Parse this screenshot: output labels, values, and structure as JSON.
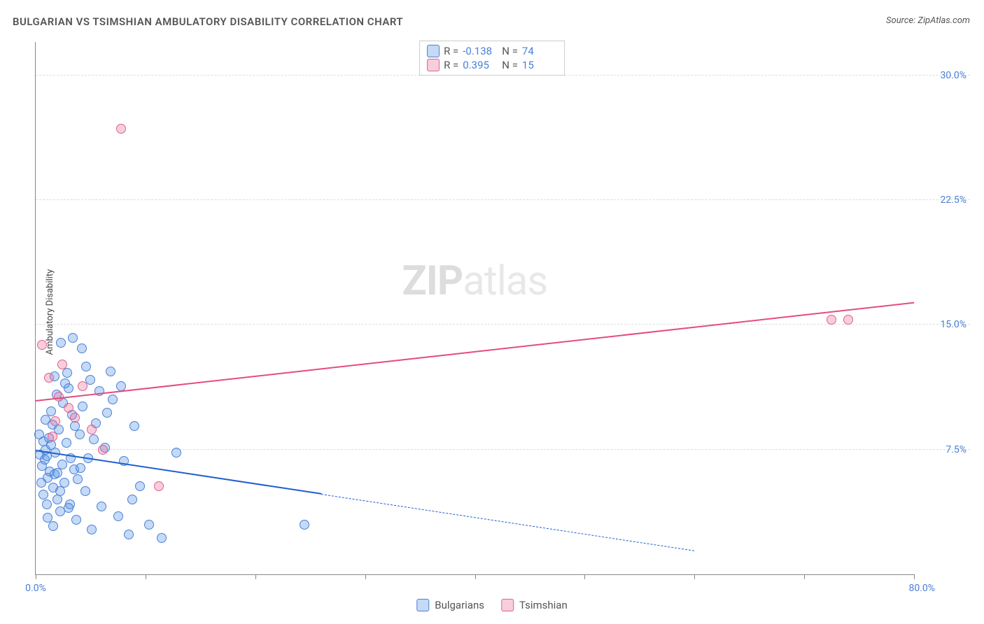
{
  "title": "BULGARIAN VS TSIMSHIAN AMBULATORY DISABILITY CORRELATION CHART",
  "source": "Source: ZipAtlas.com",
  "y_axis_label": "Ambulatory Disability",
  "watermark_a": "ZIP",
  "watermark_b": "atlas",
  "chart": {
    "type": "scatter",
    "background_color": "#ffffff",
    "grid_color": "#dddddd",
    "axis_color": "#888888",
    "label_color_accent": "#4a80d6",
    "xlim": [
      0,
      80
    ],
    "ylim": [
      0,
      32
    ],
    "yticks": [
      7.5,
      15.0,
      22.5,
      30.0
    ],
    "ytick_labels": [
      "7.5%",
      "15.0%",
      "22.5%",
      "30.0%"
    ],
    "xticks": [
      0,
      10,
      20,
      30,
      40,
      50,
      60,
      70,
      80
    ],
    "x_first_label": "0.0%",
    "x_last_label": "80.0%",
    "marker_radius": 14,
    "series": [
      {
        "name": "Bulgarians",
        "fill": "rgba(90,150,230,0.35)",
        "stroke": "#4a80d6",
        "trend_color": "#1f5fd0",
        "r_label": "R = ",
        "r_value": "-0.138",
        "n_label": "N = ",
        "n_value": "74",
        "trend": {
          "x0": 0,
          "y0": 7.4,
          "x1_solid": 26,
          "y1_solid": 4.8,
          "x1": 60,
          "y1": 1.4
        },
        "points": [
          [
            0.4,
            7.2
          ],
          [
            0.6,
            6.5
          ],
          [
            0.7,
            8.0
          ],
          [
            0.8,
            6.9
          ],
          [
            0.9,
            7.5
          ],
          [
            1.0,
            7.1
          ],
          [
            1.1,
            5.8
          ],
          [
            1.2,
            8.2
          ],
          [
            1.3,
            6.2
          ],
          [
            1.4,
            7.8
          ],
          [
            1.5,
            9.0
          ],
          [
            1.6,
            5.2
          ],
          [
            1.7,
            6.0
          ],
          [
            1.8,
            7.3
          ],
          [
            2.0,
            4.5
          ],
          [
            2.1,
            8.7
          ],
          [
            2.2,
            3.8
          ],
          [
            2.4,
            6.6
          ],
          [
            2.5,
            10.3
          ],
          [
            2.6,
            5.5
          ],
          [
            2.8,
            7.9
          ],
          [
            3.0,
            11.2
          ],
          [
            3.1,
            4.2
          ],
          [
            3.3,
            9.6
          ],
          [
            3.5,
            6.3
          ],
          [
            3.7,
            3.3
          ],
          [
            4.0,
            8.4
          ],
          [
            4.2,
            13.6
          ],
          [
            4.5,
            5.0
          ],
          [
            4.8,
            7.0
          ],
          [
            5.0,
            11.7
          ],
          [
            5.1,
            2.7
          ],
          [
            5.5,
            9.1
          ],
          [
            6.0,
            4.1
          ],
          [
            6.3,
            7.6
          ],
          [
            7.0,
            10.5
          ],
          [
            7.5,
            3.5
          ],
          [
            8.0,
            6.8
          ],
          [
            8.5,
            2.4
          ],
          [
            9.0,
            8.9
          ],
          [
            9.5,
            5.3
          ],
          [
            10.3,
            3.0
          ],
          [
            2.3,
            13.9
          ],
          [
            2.9,
            12.1
          ],
          [
            3.4,
            14.2
          ],
          [
            4.6,
            12.5
          ],
          [
            5.8,
            11.0
          ],
          [
            1.9,
            10.8
          ],
          [
            2.7,
            11.5
          ],
          [
            3.2,
            7.0
          ],
          [
            0.5,
            5.5
          ],
          [
            0.3,
            8.4
          ],
          [
            1.0,
            4.2
          ],
          [
            1.4,
            9.8
          ],
          [
            1.7,
            11.9
          ],
          [
            6.8,
            12.2
          ],
          [
            2.0,
            6.1
          ],
          [
            0.9,
            9.3
          ],
          [
            0.7,
            4.8
          ],
          [
            1.1,
            3.4
          ],
          [
            1.6,
            2.9
          ],
          [
            2.2,
            5.0
          ],
          [
            3.0,
            4.0
          ],
          [
            3.8,
            5.7
          ],
          [
            4.3,
            10.1
          ],
          [
            5.3,
            8.1
          ],
          [
            6.5,
            9.7
          ],
          [
            7.8,
            11.3
          ],
          [
            8.8,
            4.5
          ],
          [
            11.5,
            2.2
          ],
          [
            12.8,
            7.3
          ],
          [
            3.6,
            8.9
          ],
          [
            4.1,
            6.4
          ],
          [
            24.5,
            3.0
          ]
        ]
      },
      {
        "name": "Tsimshian",
        "fill": "rgba(235,115,155,0.35)",
        "stroke": "#e06090",
        "trend_color": "#e54b7f",
        "r_label": "R = ",
        "r_value": "0.395",
        "n_label": "N = ",
        "n_value": "15",
        "trend": {
          "x0": 0,
          "y0": 10.4,
          "x1_solid": 80,
          "y1_solid": 16.3,
          "x1": 80,
          "y1": 16.3
        },
        "points": [
          [
            0.6,
            13.8
          ],
          [
            1.2,
            11.8
          ],
          [
            1.8,
            9.2
          ],
          [
            2.4,
            12.6
          ],
          [
            3.0,
            10.0
          ],
          [
            3.6,
            9.4
          ],
          [
            4.3,
            11.3
          ],
          [
            5.1,
            8.7
          ],
          [
            6.1,
            7.5
          ],
          [
            7.8,
            26.8
          ],
          [
            11.2,
            5.3
          ],
          [
            72.5,
            15.3
          ],
          [
            74.0,
            15.3
          ],
          [
            2.1,
            10.7
          ],
          [
            1.5,
            8.3
          ]
        ]
      }
    ]
  },
  "bottom_legend": [
    {
      "label": "Bulgarians",
      "fill": "rgba(90,150,230,0.35)",
      "stroke": "#4a80d6"
    },
    {
      "label": "Tsimshian",
      "fill": "rgba(235,115,155,0.35)",
      "stroke": "#e06090"
    }
  ]
}
